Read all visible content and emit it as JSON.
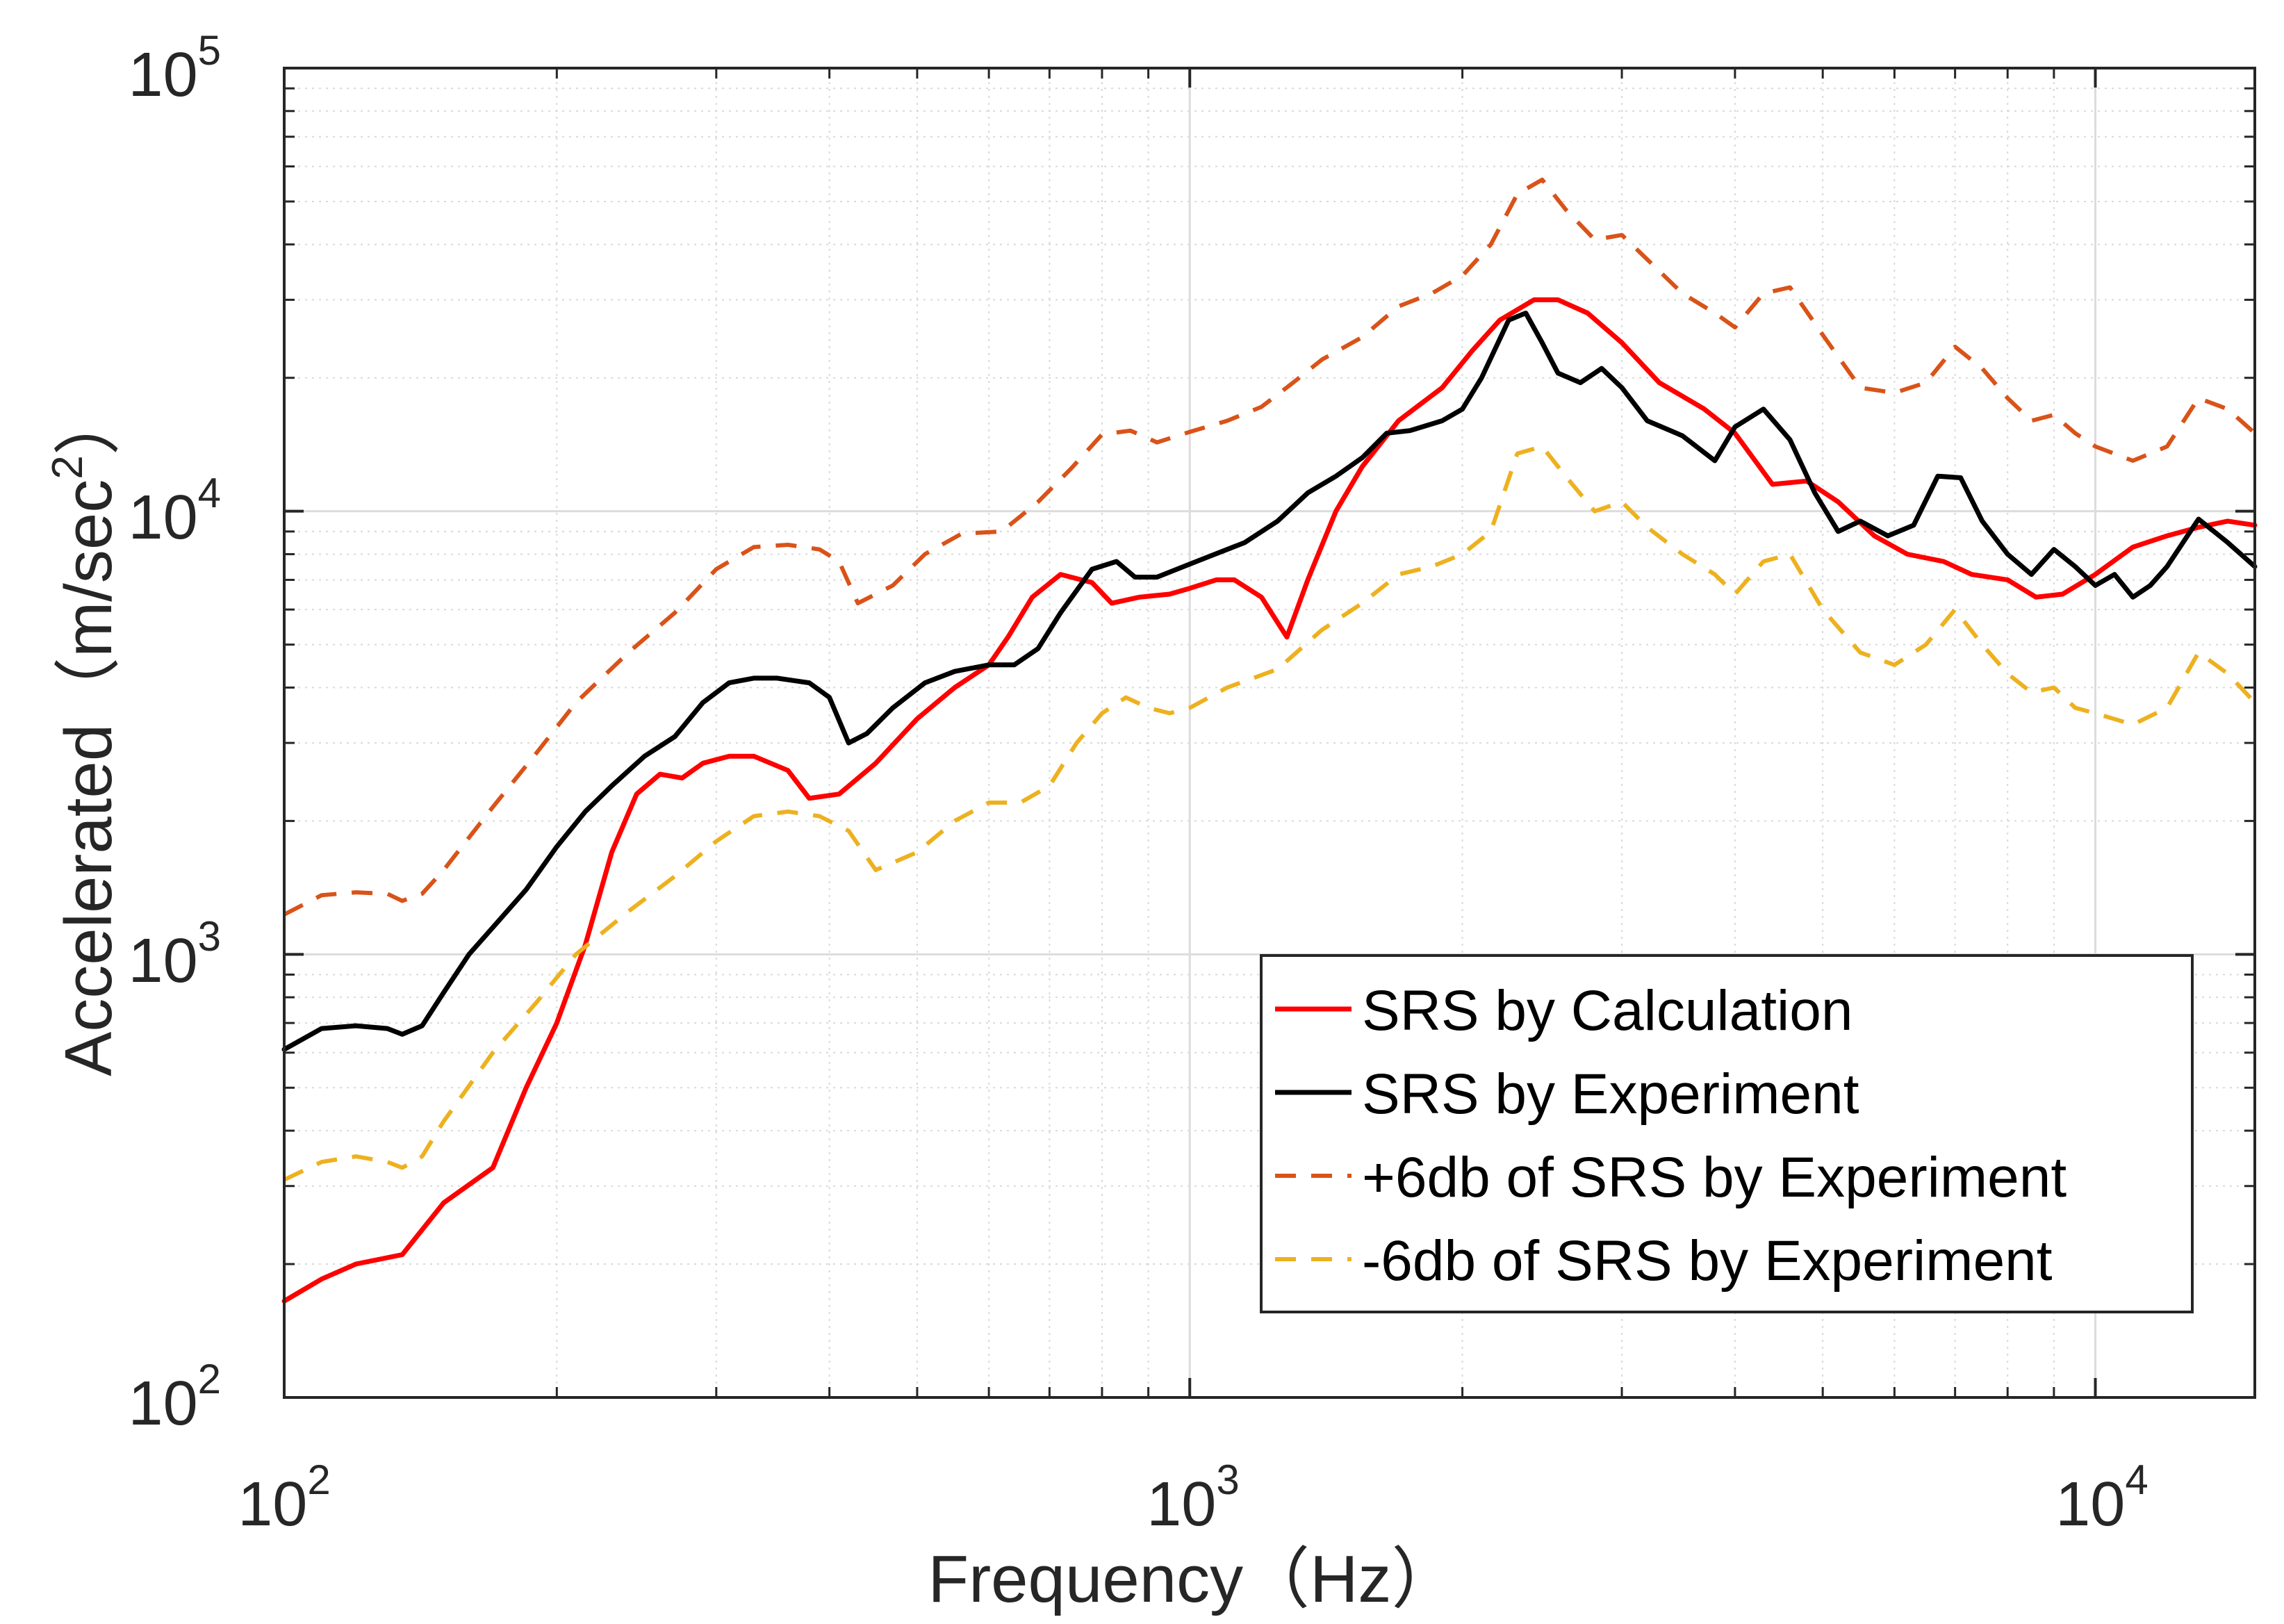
{
  "chart_data": {
    "type": "line",
    "title": "",
    "xlabel": "Frequency（Hz）",
    "ylabel": "Accelerated（m/sec",
    "ylabel_superscript": "2",
    "ylabel_close": "）",
    "xscale": "log",
    "yscale": "log",
    "xlim": [
      100,
      15000
    ],
    "ylim": [
      100,
      100000
    ],
    "grid": true,
    "minor_grid": true,
    "legend_position": "bottom-right",
    "x_ticks": [
      {
        "value": 100,
        "base": "10",
        "exp": "2"
      },
      {
        "value": 1000,
        "base": "10",
        "exp": "3"
      },
      {
        "value": 10000,
        "base": "10",
        "exp": "4"
      }
    ],
    "y_ticks": [
      {
        "value": 100,
        "base": "10",
        "exp": "2"
      },
      {
        "value": 1000,
        "base": "10",
        "exp": "3"
      },
      {
        "value": 10000,
        "base": "10",
        "exp": "4"
      },
      {
        "value": 100000,
        "base": "10",
        "exp": "5"
      }
    ],
    "series": [
      {
        "name": "SRS by Calculation",
        "color": "#ff0000",
        "style": "solid",
        "points": [
          [
            100,
            165
          ],
          [
            110,
            185
          ],
          [
            120,
            200
          ],
          [
            135,
            210
          ],
          [
            150,
            275
          ],
          [
            170,
            330
          ],
          [
            185,
            500
          ],
          [
            200,
            700
          ],
          [
            215,
            1050
          ],
          [
            230,
            1700
          ],
          [
            245,
            2300
          ],
          [
            260,
            2550
          ],
          [
            275,
            2500
          ],
          [
            290,
            2700
          ],
          [
            310,
            2800
          ],
          [
            330,
            2800
          ],
          [
            360,
            2600
          ],
          [
            380,
            2250
          ],
          [
            410,
            2300
          ],
          [
            450,
            2700
          ],
          [
            500,
            3400
          ],
          [
            550,
            4000
          ],
          [
            600,
            4500
          ],
          [
            630,
            5200
          ],
          [
            670,
            6400
          ],
          [
            720,
            7200
          ],
          [
            780,
            6900
          ],
          [
            820,
            6200
          ],
          [
            880,
            6400
          ],
          [
            950,
            6500
          ],
          [
            1000,
            6700
          ],
          [
            1070,
            7000
          ],
          [
            1120,
            7000
          ],
          [
            1200,
            6400
          ],
          [
            1280,
            5200
          ],
          [
            1350,
            7000
          ],
          [
            1450,
            10000
          ],
          [
            1550,
            12600
          ],
          [
            1700,
            16000
          ],
          [
            1900,
            19000
          ],
          [
            2050,
            23000
          ],
          [
            2200,
            27000
          ],
          [
            2400,
            30000
          ],
          [
            2550,
            30000
          ],
          [
            2750,
            28000
          ],
          [
            3000,
            24000
          ],
          [
            3300,
            19500
          ],
          [
            3700,
            17000
          ],
          [
            4000,
            15000
          ],
          [
            4400,
            11500
          ],
          [
            4800,
            11700
          ],
          [
            5200,
            10500
          ],
          [
            5700,
            8800
          ],
          [
            6200,
            8000
          ],
          [
            6800,
            7700
          ],
          [
            7300,
            7200
          ],
          [
            8000,
            7000
          ],
          [
            8600,
            6400
          ],
          [
            9200,
            6500
          ],
          [
            10000,
            7200
          ],
          [
            11000,
            8300
          ],
          [
            12000,
            8800
          ],
          [
            13000,
            9200
          ],
          [
            14000,
            9500
          ],
          [
            15000,
            9300
          ]
        ]
      },
      {
        "name": "SRS by Experiment",
        "color": "#000000",
        "style": "solid",
        "points": [
          [
            100,
            610
          ],
          [
            110,
            680
          ],
          [
            120,
            690
          ],
          [
            130,
            680
          ],
          [
            135,
            660
          ],
          [
            142,
            690
          ],
          [
            150,
            820
          ],
          [
            160,
            1000
          ],
          [
            170,
            1150
          ],
          [
            185,
            1400
          ],
          [
            200,
            1750
          ],
          [
            215,
            2100
          ],
          [
            230,
            2400
          ],
          [
            250,
            2800
          ],
          [
            270,
            3100
          ],
          [
            290,
            3700
          ],
          [
            310,
            4100
          ],
          [
            330,
            4200
          ],
          [
            350,
            4200
          ],
          [
            380,
            4100
          ],
          [
            400,
            3800
          ],
          [
            420,
            3000
          ],
          [
            440,
            3150
          ],
          [
            470,
            3600
          ],
          [
            510,
            4100
          ],
          [
            550,
            4350
          ],
          [
            600,
            4500
          ],
          [
            640,
            4500
          ],
          [
            680,
            4900
          ],
          [
            720,
            5900
          ],
          [
            780,
            7400
          ],
          [
            830,
            7700
          ],
          [
            870,
            7100
          ],
          [
            920,
            7100
          ],
          [
            1000,
            7600
          ],
          [
            1050,
            7900
          ],
          [
            1150,
            8500
          ],
          [
            1250,
            9500
          ],
          [
            1350,
            11000
          ],
          [
            1450,
            12000
          ],
          [
            1550,
            13200
          ],
          [
            1650,
            15000
          ],
          [
            1750,
            15200
          ],
          [
            1900,
            16000
          ],
          [
            2000,
            17000
          ],
          [
            2100,
            20000
          ],
          [
            2250,
            27000
          ],
          [
            2350,
            28000
          ],
          [
            2450,
            24000
          ],
          [
            2550,
            20500
          ],
          [
            2700,
            19500
          ],
          [
            2850,
            21000
          ],
          [
            3000,
            19000
          ],
          [
            3200,
            16000
          ],
          [
            3500,
            14800
          ],
          [
            3800,
            13000
          ],
          [
            4000,
            15500
          ],
          [
            4300,
            17000
          ],
          [
            4600,
            14500
          ],
          [
            4900,
            11000
          ],
          [
            5200,
            9000
          ],
          [
            5500,
            9500
          ],
          [
            5900,
            8800
          ],
          [
            6300,
            9300
          ],
          [
            6700,
            12000
          ],
          [
            7100,
            11900
          ],
          [
            7500,
            9500
          ],
          [
            8000,
            8000
          ],
          [
            8500,
            7200
          ],
          [
            9000,
            8200
          ],
          [
            9500,
            7500
          ],
          [
            10000,
            6800
          ],
          [
            10500,
            7200
          ],
          [
            11000,
            6400
          ],
          [
            11500,
            6800
          ],
          [
            12000,
            7500
          ],
          [
            13000,
            9600
          ],
          [
            14000,
            8500
          ],
          [
            15000,
            7500
          ]
        ]
      },
      {
        "name": "+6db of SRS by Experiment",
        "color": "#d95319",
        "style": "dashed",
        "points": [
          [
            100,
            1230
          ],
          [
            110,
            1360
          ],
          [
            120,
            1380
          ],
          [
            130,
            1370
          ],
          [
            135,
            1320
          ],
          [
            142,
            1370
          ],
          [
            150,
            1550
          ],
          [
            170,
            2150
          ],
          [
            190,
            2850
          ],
          [
            210,
            3700
          ],
          [
            240,
            4800
          ],
          [
            270,
            5900
          ],
          [
            300,
            7400
          ],
          [
            330,
            8300
          ],
          [
            360,
            8400
          ],
          [
            390,
            8200
          ],
          [
            410,
            7700
          ],
          [
            430,
            6200
          ],
          [
            470,
            6800
          ],
          [
            510,
            8000
          ],
          [
            560,
            8900
          ],
          [
            620,
            9000
          ],
          [
            680,
            10500
          ],
          [
            740,
            12500
          ],
          [
            800,
            14900
          ],
          [
            860,
            15200
          ],
          [
            920,
            14300
          ],
          [
            1000,
            15100
          ],
          [
            1100,
            16000
          ],
          [
            1200,
            17200
          ],
          [
            1300,
            19500
          ],
          [
            1400,
            22000
          ],
          [
            1550,
            24700
          ],
          [
            1700,
            29000
          ],
          [
            1850,
            31000
          ],
          [
            2000,
            34000
          ],
          [
            2150,
            40000
          ],
          [
            2300,
            52000
          ],
          [
            2450,
            56000
          ],
          [
            2600,
            48000
          ],
          [
            2800,
            41000
          ],
          [
            3000,
            42000
          ],
          [
            3200,
            37000
          ],
          [
            3500,
            31000
          ],
          [
            3800,
            28000
          ],
          [
            4000,
            26000
          ],
          [
            4300,
            31000
          ],
          [
            4600,
            32000
          ],
          [
            5000,
            25000
          ],
          [
            5500,
            19000
          ],
          [
            6000,
            18500
          ],
          [
            6500,
            19500
          ],
          [
            7000,
            23500
          ],
          [
            7500,
            21000
          ],
          [
            8000,
            18000
          ],
          [
            8500,
            16000
          ],
          [
            9000,
            16500
          ],
          [
            9500,
            15000
          ],
          [
            10000,
            14000
          ],
          [
            11000,
            13000
          ],
          [
            12000,
            14000
          ],
          [
            13000,
            18000
          ],
          [
            14000,
            17000
          ],
          [
            15000,
            15000
          ]
        ]
      },
      {
        "name": "-6db of SRS by Experiment",
        "color": "#edb120",
        "style": "dashed",
        "points": [
          [
            100,
            310
          ],
          [
            110,
            340
          ],
          [
            120,
            350
          ],
          [
            130,
            340
          ],
          [
            135,
            330
          ],
          [
            142,
            350
          ],
          [
            150,
            420
          ],
          [
            170,
            600
          ],
          [
            190,
            780
          ],
          [
            210,
            1000
          ],
          [
            240,
            1250
          ],
          [
            270,
            1500
          ],
          [
            300,
            1800
          ],
          [
            330,
            2050
          ],
          [
            360,
            2100
          ],
          [
            390,
            2050
          ],
          [
            420,
            1900
          ],
          [
            450,
            1550
          ],
          [
            500,
            1700
          ],
          [
            550,
            2000
          ],
          [
            600,
            2200
          ],
          [
            650,
            2200
          ],
          [
            700,
            2400
          ],
          [
            750,
            3000
          ],
          [
            800,
            3500
          ],
          [
            850,
            3800
          ],
          [
            900,
            3600
          ],
          [
            950,
            3500
          ],
          [
            1000,
            3600
          ],
          [
            1100,
            4000
          ],
          [
            1250,
            4400
          ],
          [
            1400,
            5400
          ],
          [
            1550,
            6200
          ],
          [
            1700,
            7200
          ],
          [
            1850,
            7500
          ],
          [
            2000,
            8000
          ],
          [
            2150,
            9000
          ],
          [
            2300,
            13500
          ],
          [
            2450,
            14000
          ],
          [
            2600,
            12000
          ],
          [
            2800,
            10000
          ],
          [
            3000,
            10500
          ],
          [
            3200,
            9200
          ],
          [
            3500,
            8000
          ],
          [
            3800,
            7200
          ],
          [
            4000,
            6500
          ],
          [
            4300,
            7700
          ],
          [
            4600,
            8000
          ],
          [
            5000,
            6000
          ],
          [
            5500,
            4800
          ],
          [
            6000,
            4500
          ],
          [
            6500,
            5000
          ],
          [
            7000,
            6000
          ],
          [
            7500,
            5000
          ],
          [
            8000,
            4300
          ],
          [
            8500,
            3900
          ],
          [
            9000,
            4000
          ],
          [
            9500,
            3600
          ],
          [
            10000,
            3500
          ],
          [
            11000,
            3300
          ],
          [
            12000,
            3600
          ],
          [
            13000,
            4800
          ],
          [
            14000,
            4300
          ],
          [
            15000,
            3700
          ]
        ]
      }
    ]
  }
}
